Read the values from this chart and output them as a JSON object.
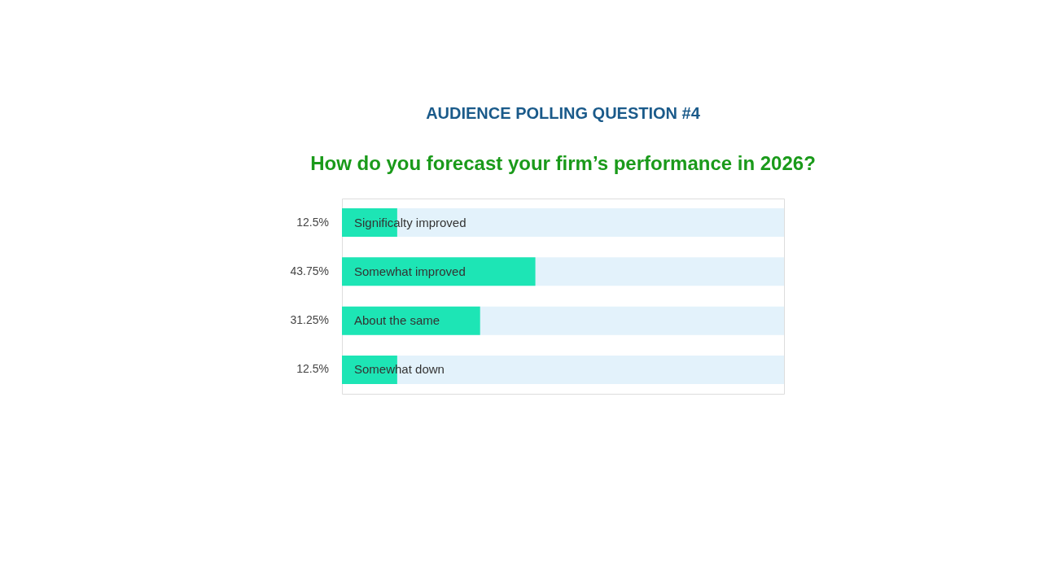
{
  "chart_data": {
    "type": "bar",
    "orientation": "horizontal",
    "title": "AUDIENCE POLLING QUESTION #4",
    "subtitle": "How do you forecast your firm’s performance in 2026?",
    "categories": [
      "Significalty improved",
      "Somewhat improved",
      "About the same",
      "Somewhat down"
    ],
    "values": [
      12.5,
      43.75,
      31.25,
      12.5
    ],
    "value_labels": [
      "12.5%",
      "43.75%",
      "31.25%",
      "12.5%"
    ],
    "color": "#1de5b5",
    "xlim": [
      0,
      100
    ],
    "tick_labels": false
  }
}
